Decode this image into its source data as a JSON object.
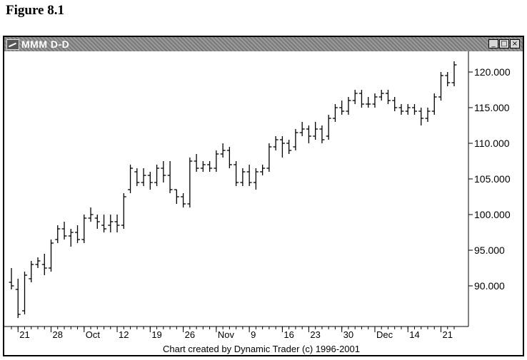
{
  "figure_label": "Figure 8.1",
  "window": {
    "title": "MMM D-D",
    "minimize_glyph": "_",
    "maximize_glyph": "□",
    "close_glyph": "×"
  },
  "footer_text": "Chart created by Dynamic Trader (c) 1996-2001",
  "colors": {
    "bars": "#000000",
    "titlebar": "#8a8a8a",
    "background": "#ffffff"
  },
  "chart_data": {
    "type": "ohlc",
    "title": "MMM D-D",
    "y_ticks": [
      "120.000",
      "115.000",
      "110.000",
      "105.000",
      "100.000",
      "95.000",
      "90.000"
    ],
    "y_tick_values": [
      120,
      115,
      110,
      105,
      100,
      95,
      90
    ],
    "ylim": [
      84.5,
      122.5
    ],
    "x_tick_labels": [
      {
        "label": "21",
        "index": 1
      },
      {
        "label": "28",
        "index": 6
      },
      {
        "label": "Oct",
        "index": 11
      },
      {
        "label": "12",
        "index": 16
      },
      {
        "label": "19",
        "index": 21
      },
      {
        "label": "26",
        "index": 26
      },
      {
        "label": "Nov",
        "index": 31
      },
      {
        "label": "9",
        "index": 36
      },
      {
        "label": "16",
        "index": 41
      },
      {
        "label": "23",
        "index": 45
      },
      {
        "label": "30",
        "index": 50
      },
      {
        "label": "Dec",
        "index": 55
      },
      {
        "label": "14",
        "index": 60
      },
      {
        "label": "21",
        "index": 65
      }
    ],
    "bar_count": 68,
    "ohlc": [
      [
        90.5,
        92.5,
        89.5,
        90.0
      ],
      [
        89.5,
        91.0,
        85.5,
        86.0
      ],
      [
        86.5,
        92.0,
        86.0,
        91.5
      ],
      [
        91.0,
        93.5,
        90.5,
        93.0
      ],
      [
        93.0,
        94.0,
        92.5,
        93.5
      ],
      [
        93.0,
        94.5,
        91.5,
        92.5
      ],
      [
        92.5,
        96.5,
        92.0,
        96.0
      ],
      [
        96.5,
        98.5,
        96.0,
        98.0
      ],
      [
        98.0,
        99.0,
        96.5,
        97.0
      ],
      [
        97.0,
        98.0,
        95.5,
        97.5
      ],
      [
        97.5,
        98.5,
        96.0,
        96.5
      ],
      [
        96.5,
        100.0,
        96.0,
        99.5
      ],
      [
        99.5,
        101.0,
        99.0,
        100.0
      ],
      [
        99.5,
        100.0,
        98.0,
        99.0
      ],
      [
        98.5,
        100.0,
        97.5,
        98.0
      ],
      [
        98.5,
        100.0,
        97.5,
        99.0
      ],
      [
        99.0,
        100.0,
        97.5,
        98.5
      ],
      [
        98.5,
        103.0,
        98.0,
        102.5
      ],
      [
        103.5,
        107.0,
        103.0,
        106.5
      ],
      [
        106.0,
        106.5,
        104.0,
        104.5
      ],
      [
        104.5,
        106.5,
        104.0,
        105.5
      ],
      [
        105.5,
        106.0,
        103.5,
        104.5
      ],
      [
        104.5,
        107.0,
        104.0,
        106.5
      ],
      [
        106.5,
        107.5,
        104.5,
        105.5
      ],
      [
        105.5,
        107.5,
        103.0,
        103.5
      ],
      [
        103.5,
        103.5,
        101.5,
        102.5
      ],
      [
        102.5,
        103.0,
        101.0,
        101.5
      ],
      [
        101.5,
        108.0,
        101.0,
        107.5
      ],
      [
        107.5,
        108.5,
        106.0,
        106.5
      ],
      [
        106.5,
        107.5,
        106.0,
        107.0
      ],
      [
        107.0,
        107.5,
        106.0,
        106.5
      ],
      [
        106.5,
        109.0,
        106.0,
        108.5
      ],
      [
        108.5,
        110.0,
        108.0,
        109.0
      ],
      [
        109.0,
        109.5,
        106.5,
        107.0
      ],
      [
        107.0,
        107.5,
        104.0,
        104.5
      ],
      [
        104.5,
        106.5,
        104.0,
        106.0
      ],
      [
        106.0,
        107.0,
        104.0,
        104.5
      ],
      [
        104.5,
        106.5,
        103.5,
        106.0
      ],
      [
        106.0,
        107.0,
        105.5,
        106.5
      ],
      [
        106.5,
        110.0,
        106.0,
        109.5
      ],
      [
        109.5,
        111.0,
        109.0,
        110.5
      ],
      [
        110.5,
        111.0,
        108.0,
        110.0
      ],
      [
        110.0,
        110.5,
        108.5,
        109.0
      ],
      [
        109.5,
        112.0,
        109.0,
        111.5
      ],
      [
        111.5,
        113.0,
        111.0,
        112.0
      ],
      [
        112.0,
        112.5,
        110.0,
        111.0
      ],
      [
        111.0,
        113.0,
        110.5,
        112.0
      ],
      [
        112.0,
        112.5,
        110.0,
        110.5
      ],
      [
        111.0,
        114.0,
        110.5,
        113.5
      ],
      [
        113.5,
        115.5,
        113.0,
        115.0
      ],
      [
        115.0,
        116.0,
        114.0,
        114.5
      ],
      [
        114.5,
        116.5,
        114.0,
        116.0
      ],
      [
        116.0,
        117.5,
        115.5,
        117.0
      ],
      [
        117.0,
        117.5,
        115.0,
        115.5
      ],
      [
        115.5,
        116.5,
        115.0,
        115.5
      ],
      [
        115.5,
        117.0,
        115.0,
        116.5
      ],
      [
        116.5,
        117.5,
        116.0,
        117.0
      ],
      [
        117.0,
        117.5,
        115.5,
        116.0
      ],
      [
        116.0,
        116.5,
        114.5,
        115.0
      ],
      [
        115.0,
        115.5,
        114.0,
        114.5
      ],
      [
        114.5,
        115.5,
        114.0,
        115.0
      ],
      [
        115.0,
        115.5,
        114.0,
        114.5
      ],
      [
        114.5,
        115.0,
        112.5,
        113.5
      ],
      [
        113.5,
        115.0,
        113.0,
        114.5
      ],
      [
        114.5,
        117.0,
        114.0,
        116.5
      ],
      [
        116.5,
        120.0,
        116.0,
        119.5
      ],
      [
        119.5,
        120.0,
        118.0,
        118.5
      ],
      [
        118.5,
        121.5,
        118.0,
        121.0
      ]
    ]
  }
}
